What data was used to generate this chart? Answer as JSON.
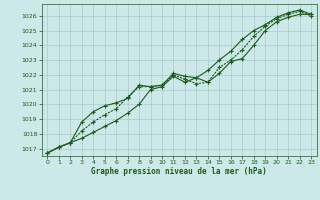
{
  "title": "Graphe pression niveau de la mer (hPa)",
  "bg_color": "#cce8e8",
  "grid_color": "#aacccc",
  "line_color": "#1a5c1a",
  "xlim": [
    -0.5,
    23.5
  ],
  "ylim": [
    1016.5,
    1026.8
  ],
  "yticks": [
    1017,
    1018,
    1019,
    1020,
    1021,
    1022,
    1023,
    1024,
    1025,
    1026
  ],
  "xticks": [
    0,
    1,
    2,
    3,
    4,
    5,
    6,
    7,
    8,
    9,
    10,
    11,
    12,
    13,
    14,
    15,
    16,
    17,
    18,
    19,
    20,
    21,
    22,
    23
  ],
  "series1_x": [
    0,
    1,
    2,
    3,
    4,
    5,
    6,
    7,
    8,
    9,
    10,
    11,
    12,
    13,
    14,
    15,
    16,
    17,
    18,
    19,
    20,
    21,
    22,
    23
  ],
  "series1_y": [
    1016.7,
    1017.1,
    1017.4,
    1017.7,
    1018.1,
    1018.5,
    1018.9,
    1019.4,
    1020.0,
    1021.0,
    1021.2,
    1021.9,
    1021.5,
    1021.8,
    1021.5,
    1022.1,
    1022.9,
    1023.1,
    1024.0,
    1025.0,
    1025.6,
    1025.9,
    1026.1,
    1026.1
  ],
  "series2_x": [
    0,
    1,
    2,
    3,
    4,
    5,
    6,
    7,
    8,
    9,
    10,
    11,
    12,
    13,
    14,
    15,
    16,
    17,
    18,
    19,
    20,
    21,
    22,
    23
  ],
  "series2_y": [
    1016.7,
    1017.1,
    1017.4,
    1018.2,
    1018.8,
    1019.3,
    1019.7,
    1020.5,
    1021.2,
    1021.2,
    1021.3,
    1022.0,
    1021.7,
    1021.4,
    1021.5,
    1022.5,
    1023.0,
    1023.7,
    1024.6,
    1025.3,
    1025.8,
    1026.1,
    1026.3,
    1026.0
  ],
  "series3_x": [
    0,
    1,
    2,
    3,
    4,
    5,
    6,
    7,
    8,
    9,
    10,
    11,
    12,
    13,
    14,
    15,
    16,
    17,
    18,
    19,
    20,
    21,
    22,
    23
  ],
  "series3_y": [
    1016.7,
    1017.1,
    1017.4,
    1018.8,
    1019.5,
    1019.9,
    1020.1,
    1020.4,
    1021.3,
    1021.2,
    1021.3,
    1022.1,
    1021.9,
    1021.8,
    1022.3,
    1023.0,
    1023.6,
    1024.4,
    1025.0,
    1025.4,
    1025.9,
    1026.2,
    1026.4,
    1026.1
  ]
}
